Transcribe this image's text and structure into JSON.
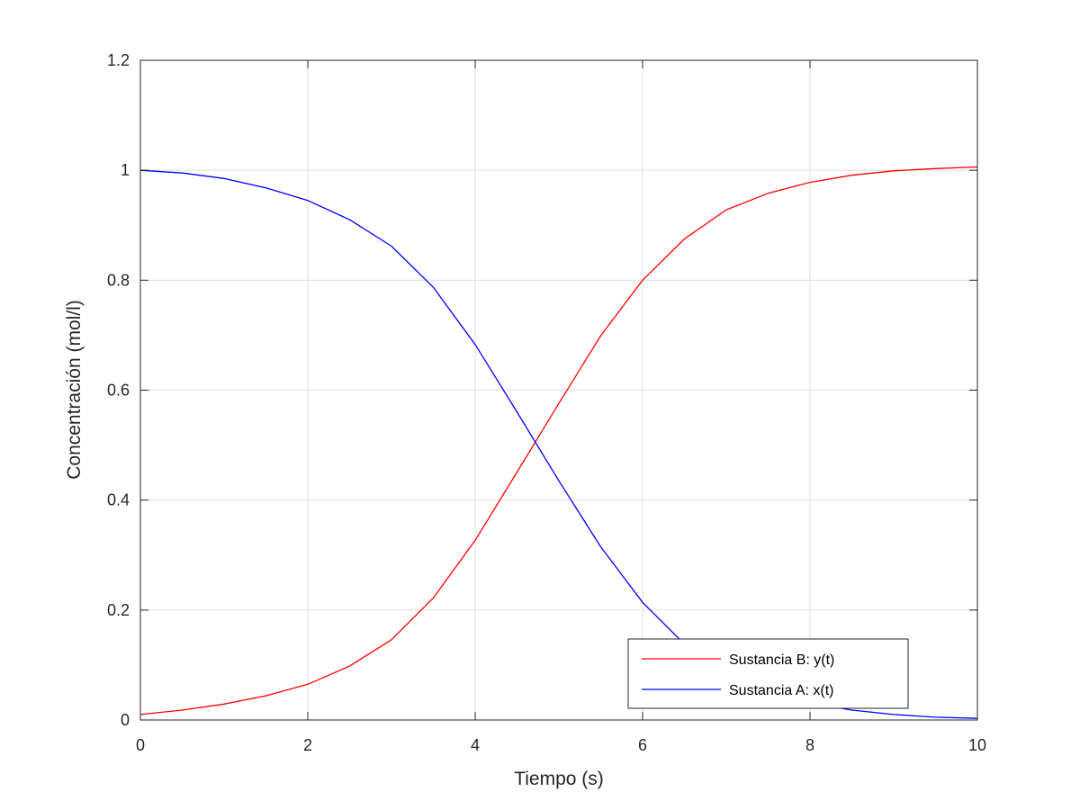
{
  "chart_data": {
    "type": "line",
    "title": "",
    "xlabel": "Tiempo (s)",
    "ylabel": "Concentración (mol/l)",
    "xlim": [
      0,
      10
    ],
    "ylim": [
      0,
      1.2
    ],
    "xticks": [
      0,
      2,
      4,
      6,
      8,
      10
    ],
    "yticks": [
      0,
      0.2,
      0.4,
      0.6,
      0.8,
      1,
      1.2
    ],
    "xtick_labels": [
      "0",
      "2",
      "4",
      "6",
      "8",
      "10"
    ],
    "ytick_labels": [
      "0",
      "0.2",
      "0.4",
      "0.6",
      "0.8",
      "1",
      "1.2"
    ],
    "grid": true,
    "legend_position": "bottom-right",
    "series": [
      {
        "name": "Sustancia B: y(t)",
        "color": "#ff0000",
        "x": [
          0,
          0.5,
          1,
          1.5,
          2,
          2.5,
          3,
          3.5,
          4,
          4.5,
          5,
          5.5,
          6,
          6.5,
          7,
          7.5,
          8,
          8.5,
          9,
          9.5,
          10
        ],
        "y": [
          0.01,
          0.018,
          0.029,
          0.044,
          0.065,
          0.098,
          0.146,
          0.222,
          0.327,
          0.451,
          0.576,
          0.699,
          0.8,
          0.875,
          0.928,
          0.958,
          0.978,
          0.991,
          0.999,
          1.003,
          1.006
        ]
      },
      {
        "name": "Sustancia A: x(t)",
        "color": "#0000ff",
        "x": [
          0,
          0.5,
          1,
          1.5,
          2,
          2.5,
          3,
          3.5,
          4,
          4.5,
          5,
          5.5,
          6,
          6.5,
          7,
          7.5,
          8,
          8.5,
          9,
          9.5,
          10
        ],
        "y": [
          1.0,
          0.995,
          0.985,
          0.968,
          0.945,
          0.91,
          0.862,
          0.787,
          0.683,
          0.56,
          0.435,
          0.315,
          0.214,
          0.138,
          0.087,
          0.053,
          0.031,
          0.018,
          0.01,
          0.005,
          0.003
        ]
      }
    ]
  }
}
